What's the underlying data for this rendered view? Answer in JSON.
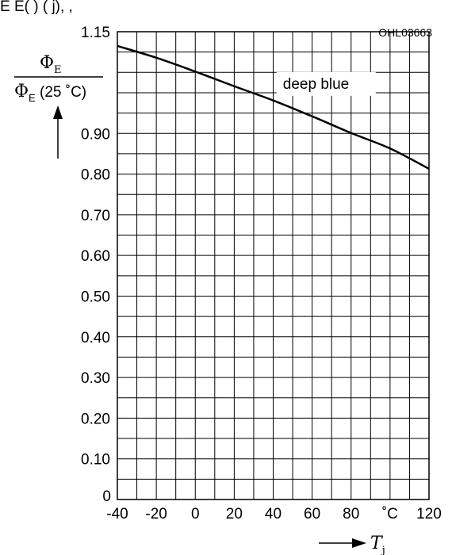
{
  "header_text": "E  E(         )     (  j),              ,",
  "figure_code": "OHL03663",
  "chart_data": {
    "type": "line",
    "xlim": [
      -40,
      120
    ],
    "ylim": [
      0,
      1.15
    ],
    "x_ticks": [
      -40,
      -20,
      0,
      20,
      40,
      60,
      80,
      100,
      120
    ],
    "x_tick_labels": [
      "-40",
      "-20",
      "0",
      "20",
      "40",
      "60",
      "80",
      "˚C",
      "120"
    ],
    "y_ticks": [
      0,
      0.1,
      0.2,
      0.3,
      0.4,
      0.5,
      0.6,
      0.7,
      0.8,
      0.9,
      1.15
    ],
    "y_tick_labels": [
      "0",
      "0.10",
      "0.20",
      "0.30",
      "0.40",
      "0.50",
      "0.60",
      "0.70",
      "0.80",
      "0.90",
      "1.15"
    ],
    "grid": true,
    "ylabel_num_main": "Φ",
    "ylabel_num_sub": "E",
    "ylabel_den_main": "Φ",
    "ylabel_den_sub": "E",
    "ylabel_den_rest": " (25 ˚C)",
    "xlabel_main": "T",
    "xlabel_sub": "j",
    "series": [
      {
        "name": "deep blue",
        "x": [
          -40,
          -20,
          0,
          20,
          40,
          60,
          80,
          100,
          120
        ],
        "y": [
          1.115,
          1.086,
          1.052,
          1.016,
          0.981,
          0.942,
          0.901,
          0.863,
          0.813
        ]
      }
    ]
  }
}
